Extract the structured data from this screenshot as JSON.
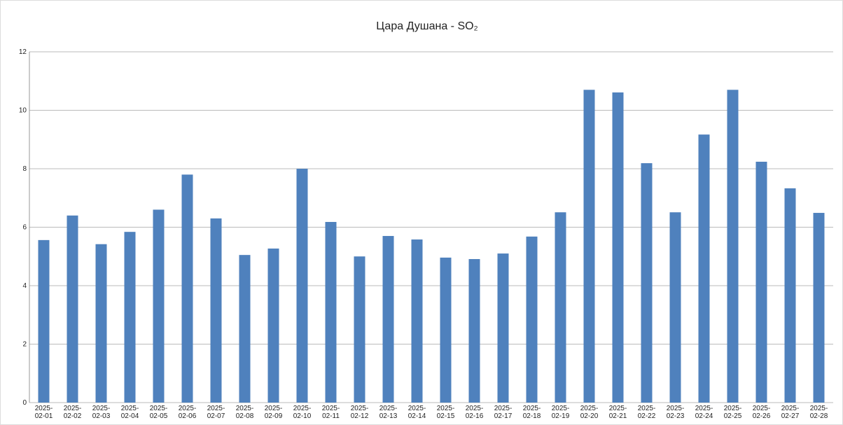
{
  "chart_data": {
    "type": "bar",
    "title": "Цара Душана - SO₂",
    "categories": [
      "2025-02-01",
      "2025-02-02",
      "2025-02-03",
      "2025-02-04",
      "2025-02-05",
      "2025-02-06",
      "2025-02-07",
      "2025-02-08",
      "2025-02-09",
      "2025-02-10",
      "2025-02-11",
      "2025-02-12",
      "2025-02-13",
      "2025-02-14",
      "2025-02-15",
      "2025-02-16",
      "2025-02-17",
      "2025-02-18",
      "2025-02-19",
      "2025-02-20",
      "2025-02-21",
      "2025-02-22",
      "2025-02-23",
      "2025-02-24",
      "2025-02-25",
      "2025-02-26",
      "2025-02-27",
      "2025-02-28"
    ],
    "values": [
      5.56,
      6.4,
      5.42,
      5.84,
      6.6,
      7.8,
      6.3,
      5.05,
      5.27,
      8.0,
      6.18,
      5.0,
      5.7,
      5.58,
      4.96,
      4.91,
      5.1,
      5.68,
      6.51,
      10.7,
      10.61,
      8.19,
      6.51,
      9.17,
      10.7,
      8.24,
      7.33,
      6.49
    ],
    "color": "#4f81bd",
    "ylim": [
      0,
      12
    ],
    "yticks": [
      0,
      2,
      4,
      6,
      8,
      10,
      12
    ],
    "grid": true
  }
}
